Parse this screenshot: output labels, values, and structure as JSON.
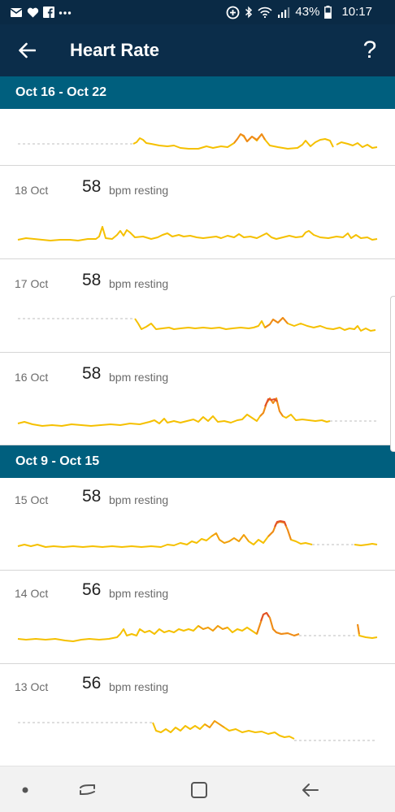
{
  "status_bar": {
    "battery_percent": "43%",
    "time": "10:17",
    "icons_left": [
      "email-icon",
      "heart-icon",
      "facebook-icon",
      "more-notifications-icon"
    ],
    "icons_right": [
      "data-saver-icon",
      "bluetooth-icon",
      "wifi-icon",
      "signal-icon",
      "battery-icon"
    ]
  },
  "app_bar": {
    "title": "Heart Rate",
    "help_label": "?"
  },
  "weeks": [
    {
      "label": "Oct 16 - Oct 22",
      "days": [
        {
          "date": "",
          "bpm": "",
          "unit": ""
        },
        {
          "date": "18 Oct",
          "bpm": "58",
          "unit": "bpm resting"
        },
        {
          "date": "17 Oct",
          "bpm": "58",
          "unit": "bpm resting"
        },
        {
          "date": "16 Oct",
          "bpm": "58",
          "unit": "bpm resting"
        }
      ]
    },
    {
      "label": "Oct 9 - Oct 15",
      "days": [
        {
          "date": "15 Oct",
          "bpm": "58",
          "unit": "bpm resting"
        },
        {
          "date": "14 Oct",
          "bpm": "56",
          "unit": "bpm resting"
        },
        {
          "date": "13 Oct",
          "bpm": "56",
          "unit": "bpm resting"
        }
      ]
    }
  ],
  "colors": {
    "app_bar": "#0b2d4a",
    "week_header": "#005f7e",
    "line_normal": "#f5c000",
    "line_elevated": "#ef8a1a",
    "line_peak": "#e2502a",
    "missing_data": "#bdbdbd"
  },
  "nav_bar": {
    "icons": [
      "dot-icon",
      "recent-apps-icon",
      "home-icon",
      "back-nav-icon"
    ]
  }
}
